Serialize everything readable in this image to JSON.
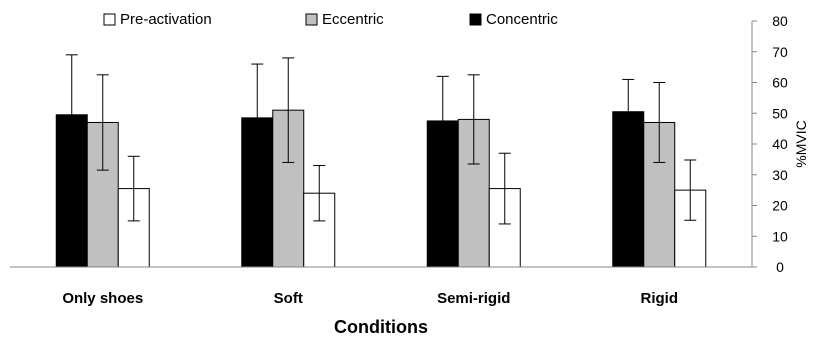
{
  "chart_data": {
    "type": "bar",
    "categories": [
      "Only shoes",
      "Soft",
      "Semi-rigid",
      "Rigid"
    ],
    "series": [
      {
        "name": "Concentric",
        "color": "#000000",
        "values": [
          49.5,
          48.5,
          47.5,
          50.5
        ],
        "error": [
          19.5,
          17.5,
          14.5,
          10.5
        ]
      },
      {
        "name": "Eccentric",
        "color": "#c0c0c0",
        "values": [
          47,
          51,
          48,
          47
        ],
        "error": [
          15.5,
          17,
          14.5,
          13
        ]
      },
      {
        "name": "Pre-activation",
        "color": "#ffffff",
        "values": [
          25.5,
          24,
          25.5,
          25
        ],
        "error": [
          10.5,
          9,
          11.5,
          9.8
        ]
      }
    ],
    "legend_order": [
      "Pre-activation",
      "Eccentric",
      "Concentric"
    ],
    "xlabel": "Conditions",
    "ylabel": "%MVIC",
    "ylim": [
      0,
      80
    ],
    "yticks": [
      0,
      10,
      20,
      30,
      40,
      50,
      60,
      70,
      80
    ],
    "y_axis_side": "right",
    "legend_position": "top",
    "grid": false
  }
}
